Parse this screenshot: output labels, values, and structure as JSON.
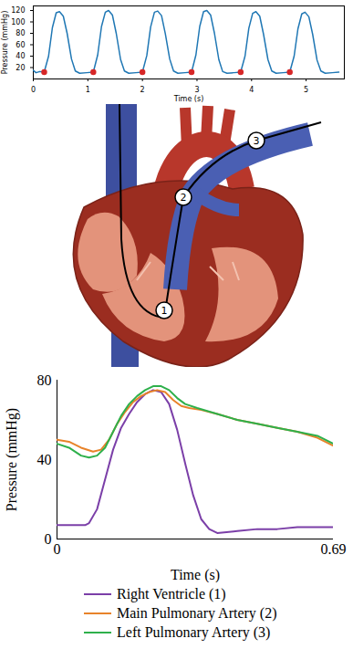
{
  "chart_data": [
    {
      "type": "line",
      "x_label": "Time (s)",
      "y_label": "Pressure (mmHg)",
      "xlim": [
        0,
        5.7
      ],
      "ylim": [
        0,
        128
      ],
      "xticks": [
        0,
        1,
        2,
        3,
        4,
        5
      ],
      "yticks": [
        20,
        40,
        60,
        80,
        100,
        120
      ],
      "color": "#1f77b4",
      "x": [
        0,
        0.05,
        0.12,
        0.2,
        0.28,
        0.35,
        0.42,
        0.48,
        0.55,
        0.62,
        0.7,
        0.77,
        0.85,
        0.98,
        1.1,
        1.18,
        1.25,
        1.32,
        1.38,
        1.45,
        1.52,
        1.6,
        1.67,
        1.75,
        1.88,
        2.0,
        2.08,
        2.15,
        2.22,
        2.28,
        2.35,
        2.42,
        2.5,
        2.57,
        2.65,
        2.78,
        2.9,
        2.98,
        3.05,
        3.12,
        3.18,
        3.25,
        3.32,
        3.4,
        3.47,
        3.55,
        3.68,
        3.8,
        3.88,
        3.95,
        4.02,
        4.08,
        4.15,
        4.22,
        4.3,
        4.37,
        4.45,
        4.58,
        4.7,
        4.78,
        4.85,
        4.92,
        4.98,
        5.05,
        5.12,
        5.2,
        5.27,
        5.35,
        5.48,
        5.6
      ],
      "values": [
        15,
        11,
        13,
        12,
        40,
        90,
        116,
        118,
        110,
        80,
        35,
        14,
        10,
        11,
        12,
        42,
        92,
        117,
        120,
        112,
        80,
        34,
        14,
        10,
        11,
        12,
        41,
        91,
        117,
        119,
        111,
        79,
        35,
        14,
        10,
        11,
        12,
        42,
        92,
        118,
        120,
        112,
        80,
        34,
        13,
        10,
        11,
        12,
        40,
        89,
        115,
        118,
        110,
        78,
        34,
        14,
        10,
        11,
        12,
        40,
        88,
        114,
        117,
        109,
        78,
        33,
        14,
        10,
        11,
        12
      ],
      "points": {
        "x": [
          0.2,
          1.1,
          2.0,
          2.9,
          3.8,
          4.7
        ],
        "values": [
          12,
          12,
          12,
          12,
          12,
          12
        ],
        "color": "#d62728",
        "marker": "circle"
      }
    },
    {
      "type": "line",
      "x_label": "Time (s)",
      "y_label": "Pressure (mmHg)",
      "xlim": [
        0,
        0.69
      ],
      "ylim": [
        0,
        80
      ],
      "xticks": [
        0,
        0.69
      ],
      "yticks": [
        0,
        40,
        80
      ],
      "legend": "bottom",
      "series": [
        {
          "name": "Right Ventricle (1)",
          "color": "#7b3fa8",
          "x": [
            0,
            0.04,
            0.07,
            0.08,
            0.1,
            0.12,
            0.14,
            0.16,
            0.18,
            0.2,
            0.22,
            0.24,
            0.26,
            0.28,
            0.3,
            0.32,
            0.34,
            0.36,
            0.38,
            0.4,
            0.45,
            0.5,
            0.55,
            0.6,
            0.65,
            0.69
          ],
          "values": [
            7,
            7,
            7,
            8,
            15,
            30,
            45,
            56,
            63,
            69,
            73,
            75,
            74,
            68,
            55,
            38,
            22,
            10,
            5,
            3,
            4,
            5,
            5,
            6,
            6,
            6
          ]
        },
        {
          "name": "Main Pulmonary Artery (2)",
          "color": "#e8832a",
          "x": [
            0,
            0.03,
            0.06,
            0.09,
            0.11,
            0.13,
            0.15,
            0.17,
            0.19,
            0.21,
            0.23,
            0.25,
            0.27,
            0.29,
            0.31,
            0.33,
            0.36,
            0.4,
            0.45,
            0.5,
            0.55,
            0.6,
            0.65,
            0.69
          ],
          "values": [
            50,
            49,
            46,
            44,
            45,
            50,
            58,
            64,
            69,
            72,
            74,
            75,
            74,
            70,
            67,
            66,
            65,
            63,
            60,
            58,
            56,
            54,
            51,
            47
          ]
        },
        {
          "name": "Left Pulmonary Artery (3)",
          "color": "#2eb04b",
          "x": [
            0,
            0.03,
            0.06,
            0.08,
            0.1,
            0.12,
            0.14,
            0.16,
            0.18,
            0.2,
            0.22,
            0.24,
            0.26,
            0.28,
            0.3,
            0.32,
            0.35,
            0.4,
            0.45,
            0.5,
            0.55,
            0.6,
            0.65,
            0.69
          ],
          "values": [
            48,
            46,
            42,
            41,
            42,
            46,
            54,
            62,
            68,
            72,
            75,
            77,
            77,
            75,
            71,
            68,
            66,
            63,
            60,
            58,
            56,
            54,
            52,
            48
          ]
        }
      ]
    }
  ],
  "diagram": {
    "markers": [
      "1",
      "2",
      "3"
    ]
  }
}
